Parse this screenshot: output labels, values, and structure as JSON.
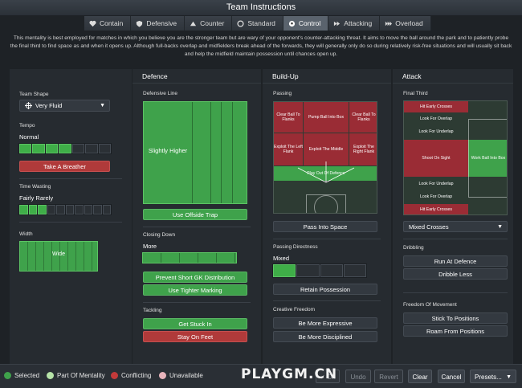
{
  "title": "Team Instructions",
  "tabs": [
    {
      "label": "Contain",
      "icon": "contain-icon"
    },
    {
      "label": "Defensive",
      "icon": "shield-icon"
    },
    {
      "label": "Counter",
      "icon": "counter-icon"
    },
    {
      "label": "Standard",
      "icon": "standard-icon"
    },
    {
      "label": "Control",
      "icon": "ball-icon"
    },
    {
      "label": "Attacking",
      "icon": "attacking-icon"
    },
    {
      "label": "Overload",
      "icon": "overload-icon"
    }
  ],
  "description": "This mentality is best employed for matches in which you believe you are the stronger team but are wary of your opponent's counter-attacking threat. It aims to move the ball around the park and to patiently probe the final third to find space as and when it opens up. Although full-backs overlap and midfielders break ahead of the forwards, they will generally only do so during relatively risk-free situations and will usually sit back and help the midfield maintain possession until chances open up.",
  "left": {
    "team_shape_label": "Team Shape",
    "team_shape_value": "Very Fluid",
    "tempo_label": "Tempo",
    "tempo_value": "Normal",
    "tempo_level": 0.57,
    "take_a_breather": "Take A Breather",
    "time_wasting_label": "Time Wasting",
    "time_wasting_value": "Fairly Rarely",
    "time_wasting_level": 0.3,
    "width_label": "Width",
    "width_value": "Wide"
  },
  "defence": {
    "header": "Defence",
    "line_label": "Defensive Line",
    "line_value": "Slightly Higher",
    "offside_trap": "Use Offside Trap",
    "closing_label": "Closing Down",
    "closing_value": "More",
    "prevent_gk": "Prevent Short GK Distribution",
    "tighter_marking": "Use Tighter Marking",
    "tackling_label": "Tackling",
    "get_stuck_in": "Get Stuck In",
    "stay_on_feet": "Stay On Feet"
  },
  "buildup": {
    "header": "Build-Up",
    "passing_label": "Passing",
    "zones": {
      "clear_left": "Clear Ball To Flanks",
      "pump": "Pump Ball Into Box",
      "clear_right": "Clear Ball To Flanks",
      "exploit_left": "Exploit The Left Flank",
      "exploit_middle": "Exploit The Middle",
      "exploit_right": "Exploit The Right Flank",
      "play_out": "Play Out Of Defence"
    },
    "pass_into_space": "Pass Into Space",
    "directness_label": "Passing Directness",
    "directness_value": "Mixed",
    "directness_level": 0.25,
    "retain_possession": "Retain Possession",
    "creative_label": "Creative Freedom",
    "more_expressive": "Be More Expressive",
    "more_disciplined": "Be More Disciplined"
  },
  "attack": {
    "header": "Attack",
    "final_third_label": "Final Third",
    "zones": {
      "hit_early_top": "Hit Early Crosses",
      "overlap": "Look For Overlap",
      "underlap_top": "Look For Underlap",
      "shoot": "Shoot On Sight",
      "work_ball": "Work Ball Into Box",
      "underlap_bottom": "Look For Underlap",
      "overlap_bottom": "Look For Overlap",
      "hit_early_bottom": "Hit Early Crosses"
    },
    "crosses_value": "Mixed Crosses",
    "dribbling_label": "Dribbling",
    "run_at_defence": "Run At Defence",
    "dribble_less": "Dribble Less",
    "freedom_label": "Freedom Of Movement",
    "stick_to_positions": "Stick To Positions",
    "roam": "Roam From Positions"
  },
  "legend": {
    "selected": "Selected",
    "part_of_mentality": "Part Of Mentality",
    "conflicting": "Conflicting",
    "unavailable": "Unavailable"
  },
  "footer": {
    "watermark": "PLAYGM.CN",
    "ok": "Ok",
    "undo": "Undo",
    "revert": "Revert",
    "clear": "Clear",
    "cancel": "Cancel",
    "presets": "Presets..."
  },
  "colors": {
    "selected": "#3fa24b",
    "part_of_mentality": "#b6e3a8",
    "conflicting": "#c23a3a",
    "unavailable": "#e8b4bc"
  }
}
